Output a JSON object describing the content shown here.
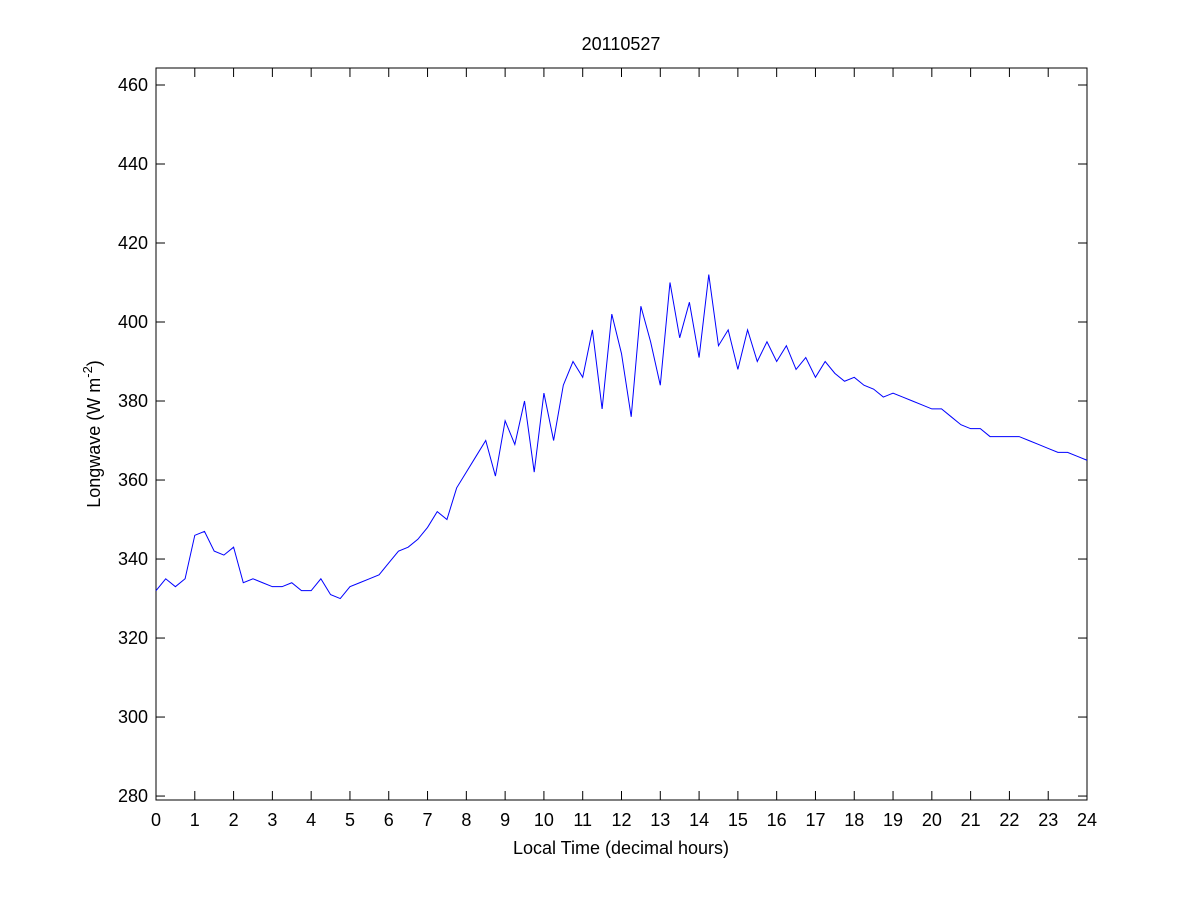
{
  "chart_data": {
    "type": "line",
    "title": "20110527",
    "xlabel": "Local Time (decimal hours)",
    "ylabel": [
      "Longwave (W m",
      "-2",
      ")"
    ],
    "x": [
      0,
      0.25,
      0.5,
      0.75,
      1,
      1.25,
      1.5,
      1.75,
      2,
      2.25,
      2.5,
      2.75,
      3,
      3.25,
      3.5,
      3.75,
      4,
      4.25,
      4.5,
      4.75,
      5,
      5.25,
      5.5,
      5.75,
      6,
      6.25,
      6.5,
      6.75,
      7,
      7.25,
      7.5,
      7.75,
      8,
      8.25,
      8.5,
      8.75,
      9,
      9.25,
      9.5,
      9.75,
      10,
      10.25,
      10.5,
      10.75,
      11,
      11.25,
      11.5,
      11.75,
      12,
      12.25,
      12.5,
      12.75,
      13,
      13.25,
      13.5,
      13.75,
      14,
      14.25,
      14.5,
      14.75,
      15,
      15.25,
      15.5,
      15.75,
      16,
      16.25,
      16.5,
      16.75,
      17,
      17.25,
      17.5,
      17.75,
      18,
      18.25,
      18.5,
      18.75,
      19,
      19.25,
      19.5,
      19.75,
      20,
      20.25,
      20.5,
      20.75,
      21,
      21.25,
      21.5,
      21.75,
      22,
      22.25,
      22.5,
      22.75,
      23,
      23.25,
      23.5,
      23.75,
      24
    ],
    "series": [
      {
        "name": "Longwave",
        "color": "#0000ff",
        "values": [
          332,
          335,
          333,
          335,
          346,
          347,
          342,
          341,
          343,
          334,
          335,
          334,
          333,
          333,
          334,
          332,
          332,
          335,
          331,
          330,
          333,
          334,
          335,
          336,
          339,
          342,
          343,
          345,
          348,
          352,
          350,
          358,
          362,
          366,
          370,
          361,
          375,
          369,
          380,
          362,
          382,
          370,
          384,
          390,
          386,
          398,
          378,
          402,
          392,
          376,
          404,
          395,
          384,
          410,
          396,
          405,
          391,
          412,
          394,
          398,
          388,
          398,
          390,
          395,
          390,
          394,
          388,
          391,
          386,
          390,
          387,
          385,
          386,
          384,
          383,
          381,
          382,
          381,
          380,
          379,
          378,
          378,
          376,
          374,
          373,
          373,
          371,
          371,
          371,
          371,
          370,
          369,
          368,
          367,
          367,
          366,
          365
        ]
      }
    ],
    "xlim": [
      0,
      24
    ],
    "ylim": [
      279,
      464.3
    ],
    "xticks": [
      0,
      1,
      2,
      3,
      4,
      5,
      6,
      7,
      8,
      9,
      10,
      11,
      12,
      13,
      14,
      15,
      16,
      17,
      18,
      19,
      20,
      21,
      22,
      23,
      24
    ],
    "yticks": [
      280,
      300,
      320,
      340,
      360,
      380,
      400,
      420,
      440,
      460
    ],
    "grid": false
  }
}
